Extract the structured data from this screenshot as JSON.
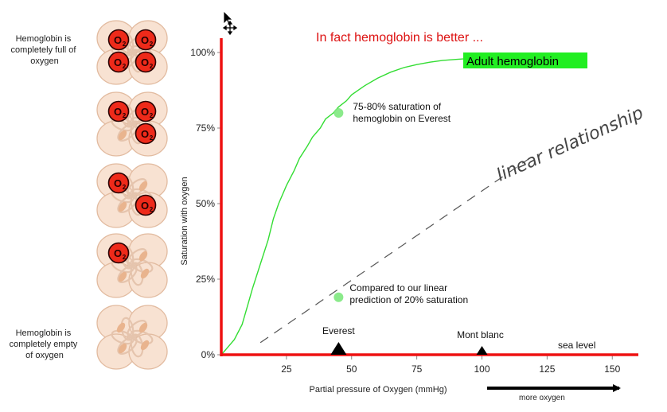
{
  "chart_data": {
    "type": "line",
    "title": "In fact hemoglobin is better ...",
    "xlabel": "Partial pressure of Oxygen (mmHg)",
    "ylabel": "Saturation with oxygen",
    "xlim": [
      0,
      160
    ],
    "ylim": [
      0,
      100
    ],
    "x_ticks": [
      25,
      50,
      75,
      100,
      125,
      150
    ],
    "y_ticks": [
      {
        "value": 0,
        "label": "0%"
      },
      {
        "value": 25,
        "label": "25%"
      },
      {
        "value": 50,
        "label": "50%"
      },
      {
        "value": 75,
        "label": "75%"
      },
      {
        "value": 100,
        "label": "100%"
      }
    ],
    "series": [
      {
        "name": "Adult hemoglobin",
        "color": "#33dd33",
        "x": [
          0,
          2,
          5,
          8,
          10,
          12,
          15,
          18,
          20,
          22,
          25,
          28,
          30,
          33,
          35,
          38,
          40,
          43,
          45,
          48,
          50,
          55,
          60,
          65,
          70,
          75,
          80,
          85,
          90,
          95,
          100
        ],
        "y": [
          0,
          2,
          5,
          10,
          16,
          22,
          30,
          38,
          45,
          50,
          56,
          61,
          65,
          69,
          72,
          75,
          78,
          80,
          82,
          84,
          86,
          89,
          91.5,
          93.5,
          95,
          96,
          96.8,
          97.4,
          97.7,
          98,
          98
        ]
      },
      {
        "name": "linear relationship",
        "color": "#555555",
        "dashed": true,
        "x": [
          15,
          120
        ],
        "y": [
          4,
          66
        ]
      }
    ],
    "points": [
      {
        "x": 45,
        "y": 80,
        "label_lines": [
          "75-80% saturation of",
          "hemoglobin  on Everest"
        ]
      },
      {
        "x": 45,
        "y": 19,
        "label_lines": [
          "Compared to our linear",
          "prediction of 20% saturation"
        ]
      }
    ],
    "markers": [
      {
        "x": 45,
        "label": "Everest"
      },
      {
        "x": 100,
        "label": "Mont blanc"
      }
    ],
    "sea_level_label": "sea level",
    "legend_label": "Adult hemoglobin",
    "linear_annotation": "linear relationship",
    "more_oxygen_label": "more oxygen",
    "colors": {
      "axis": "#ee1111",
      "title": "#dd1111",
      "curve": "#33dd33",
      "legend_bg": "#22ee22"
    }
  },
  "hemoglobin_panel": {
    "full_label_lines": [
      "Hemoglobin is",
      "completely full of",
      "oxygen"
    ],
    "empty_label_lines": [
      "Hemoglobin is",
      "completely empty",
      "of oxygen"
    ],
    "oxygen_symbol": "O",
    "oxygen_subscript": "2",
    "molecules": [
      {
        "oxygen_count": 4
      },
      {
        "oxygen_count": 3
      },
      {
        "oxygen_count": 2
      },
      {
        "oxygen_count": 1
      },
      {
        "oxygen_count": 0
      }
    ]
  },
  "cursor_icons": [
    "arrow-cursor-icon",
    "move-cursor-icon"
  ]
}
